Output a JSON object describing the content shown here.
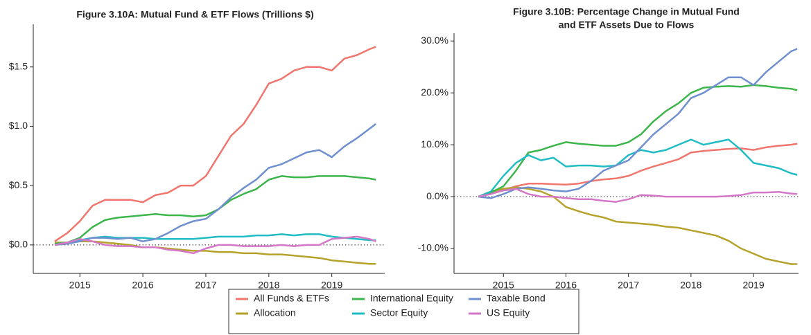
{
  "chart_data": [
    {
      "type": "line",
      "title": "Figure 3.10A: Mutual Fund & ETF Flows (Trillions $)",
      "x": [
        2014.6,
        2014.8,
        2015.0,
        2015.2,
        2015.4,
        2015.6,
        2015.8,
        2016.0,
        2016.2,
        2016.4,
        2016.6,
        2016.8,
        2017.0,
        2017.2,
        2017.4,
        2017.6,
        2017.8,
        2018.0,
        2018.2,
        2018.4,
        2018.6,
        2018.8,
        2019.0,
        2019.2,
        2019.4,
        2019.6,
        2019.7
      ],
      "xlim": [
        2014.26,
        2019.84
      ],
      "xticks": [
        2015,
        2016,
        2017,
        2018,
        2019
      ],
      "ylim": [
        -0.24,
        1.86
      ],
      "yticks": [
        {
          "value": 0,
          "label": "$0.0"
        },
        {
          "value": 0.5,
          "label": "$0.5"
        },
        {
          "value": 1,
          "label": "$1.0"
        },
        {
          "value": 1.5,
          "label": "$1.5"
        }
      ],
      "series": [
        {
          "name": "All Funds & ETFs",
          "color": "#f0766d",
          "values": [
            0.03,
            0.1,
            0.2,
            0.33,
            0.38,
            0.38,
            0.38,
            0.36,
            0.42,
            0.44,
            0.5,
            0.5,
            0.58,
            0.75,
            0.92,
            1.02,
            1.18,
            1.36,
            1.4,
            1.47,
            1.5,
            1.5,
            1.47,
            1.57,
            1.6,
            1.65,
            1.67
          ]
        },
        {
          "name": "Allocation",
          "color": "#b5a22a",
          "values": [
            0.02,
            0.02,
            0.03,
            0.03,
            0.02,
            0.01,
            0.0,
            -0.02,
            -0.02,
            -0.03,
            -0.04,
            -0.05,
            -0.05,
            -0.06,
            -0.06,
            -0.07,
            -0.07,
            -0.08,
            -0.08,
            -0.09,
            -0.1,
            -0.11,
            -0.13,
            -0.14,
            -0.15,
            -0.16,
            -0.16
          ]
        },
        {
          "name": "International Equity",
          "color": "#3cb54a",
          "values": [
            0.01,
            0.02,
            0.06,
            0.15,
            0.21,
            0.23,
            0.24,
            0.25,
            0.26,
            0.25,
            0.25,
            0.24,
            0.25,
            0.3,
            0.38,
            0.43,
            0.47,
            0.55,
            0.58,
            0.57,
            0.57,
            0.58,
            0.58,
            0.58,
            0.57,
            0.56,
            0.55
          ]
        },
        {
          "name": "Sector Equity",
          "color": "#20bcc4",
          "values": [
            0.0,
            0.02,
            0.04,
            0.06,
            0.07,
            0.06,
            0.06,
            0.06,
            0.05,
            0.05,
            0.05,
            0.05,
            0.06,
            0.07,
            0.07,
            0.07,
            0.08,
            0.08,
            0.09,
            0.08,
            0.09,
            0.09,
            0.07,
            0.06,
            0.05,
            0.04,
            0.04
          ]
        },
        {
          "name": "Taxable Bond",
          "color": "#6f8fcf",
          "values": [
            0.0,
            0.01,
            0.03,
            0.06,
            0.06,
            0.05,
            0.06,
            0.03,
            0.05,
            0.1,
            0.16,
            0.2,
            0.22,
            0.3,
            0.4,
            0.48,
            0.55,
            0.65,
            0.68,
            0.73,
            0.78,
            0.8,
            0.74,
            0.83,
            0.9,
            0.98,
            1.02
          ]
        },
        {
          "name": "US Equity",
          "color": "#d477c7",
          "values": [
            0.0,
            0.02,
            0.05,
            0.03,
            0.0,
            -0.01,
            -0.01,
            -0.02,
            -0.02,
            -0.04,
            -0.05,
            -0.07,
            -0.03,
            0.0,
            0.0,
            -0.01,
            -0.01,
            -0.01,
            0.0,
            -0.01,
            0.0,
            0.0,
            0.05,
            0.06,
            0.07,
            0.05,
            0.03
          ]
        }
      ]
    },
    {
      "type": "line",
      "title": [
        "Figure 3.10B: Percentage Change in Mutual Fund",
        "and ETF Assets Due to Flows"
      ],
      "x": [
        2014.6,
        2014.8,
        2015.0,
        2015.2,
        2015.4,
        2015.6,
        2015.8,
        2016.0,
        2016.2,
        2016.4,
        2016.6,
        2016.8,
        2017.0,
        2017.2,
        2017.4,
        2017.6,
        2017.8,
        2018.0,
        2018.2,
        2018.4,
        2018.6,
        2018.8,
        2019.0,
        2019.2,
        2019.4,
        2019.6,
        2019.7
      ],
      "xlim": [
        2014.21,
        2019.72
      ],
      "xticks": [
        2015,
        2016,
        2017,
        2018,
        2019
      ],
      "ylim": [
        -14.8,
        31.5
      ],
      "yticks": [
        {
          "value": -10,
          "label": "-10.0%"
        },
        {
          "value": 0,
          "label": "0.0%"
        },
        {
          "value": 10,
          "label": "10.0%"
        },
        {
          "value": 20,
          "label": "20.0%"
        },
        {
          "value": 30,
          "label": "30.0%"
        }
      ],
      "series": [
        {
          "name": "All Funds & ETFs",
          "color": "#f0766d",
          "values": [
            0,
            0.8,
            1.2,
            2,
            2.5,
            2.5,
            2.4,
            2.3,
            2.5,
            3,
            3.3,
            3.5,
            4,
            5,
            5.8,
            6.5,
            7.2,
            8.5,
            8.8,
            9,
            9.2,
            9.3,
            9,
            9.5,
            9.8,
            10,
            10.2
          ]
        },
        {
          "name": "Allocation",
          "color": "#b5a22a",
          "values": [
            0,
            1,
            1.5,
            1.8,
            1.5,
            1,
            0,
            -2,
            -2.8,
            -3.5,
            -4,
            -4.8,
            -5,
            -5.2,
            -5.4,
            -5.8,
            -6,
            -6.5,
            -7,
            -7.5,
            -8.5,
            -10,
            -11,
            -12,
            -12.5,
            -13,
            -13
          ]
        },
        {
          "name": "International Equity",
          "color": "#3cb54a",
          "values": [
            0,
            0.8,
            2,
            5,
            8.5,
            9,
            9.8,
            10.5,
            10.2,
            10,
            9.8,
            9.8,
            10.5,
            12,
            14.5,
            16.5,
            18,
            20,
            21,
            21.2,
            21.3,
            21.2,
            21.5,
            21.3,
            21,
            20.8,
            20.5
          ]
        },
        {
          "name": "Sector Equity",
          "color": "#20bcc4",
          "values": [
            0,
            1,
            4,
            6.5,
            8,
            7,
            7.5,
            5.8,
            6,
            6,
            5.8,
            6,
            8,
            9,
            8.5,
            9,
            10,
            11,
            10,
            10.5,
            11,
            9,
            6.5,
            6,
            5.5,
            4.5,
            4.2
          ]
        },
        {
          "name": "Taxable Bond",
          "color": "#6f8fcf",
          "values": [
            0,
            -0.3,
            0.5,
            1.5,
            1.8,
            1.5,
            1.2,
            1,
            1.5,
            3,
            5,
            6,
            7,
            9.5,
            12,
            14,
            16,
            19,
            20,
            21.5,
            23,
            23,
            21.5,
            24,
            26,
            28,
            28.5
          ]
        },
        {
          "name": "US Equity",
          "color": "#d477c7",
          "values": [
            0,
            0.5,
            1.2,
            1.5,
            0.5,
            0,
            0,
            -0.3,
            -0.5,
            -0.5,
            -0.8,
            -1,
            -0.5,
            0.3,
            0.2,
            0,
            0,
            0,
            0,
            0,
            0.1,
            0.3,
            0.8,
            0.8,
            0.9,
            0.6,
            0.5
          ]
        }
      ]
    }
  ]
}
